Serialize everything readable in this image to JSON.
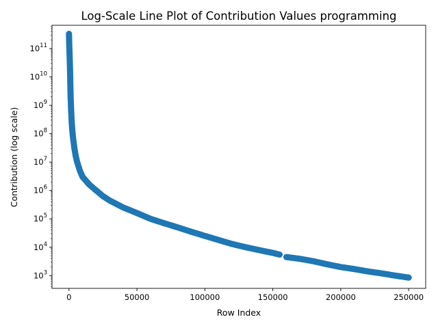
{
  "chart_data": {
    "type": "line",
    "title": "Log-Scale Line Plot of Contribution Values programming",
    "xlabel": "Row Index",
    "ylabel": "Contribution (log scale)",
    "y_scale": "log",
    "grid": false,
    "marker": "circle",
    "series_color": "#1f77b4",
    "xlim": [
      -12500,
      262500
    ],
    "ylim_log10": [
      2.55,
      11.82
    ],
    "x_ticks": [
      0,
      50000,
      100000,
      150000,
      200000,
      250000
    ],
    "x_tick_labels": [
      "0",
      "50000",
      "100000",
      "150000",
      "200000",
      "250000"
    ],
    "y_ticks": [
      {
        "base": "10",
        "exp": "3"
      },
      {
        "base": "10",
        "exp": "4"
      },
      {
        "base": "10",
        "exp": "5"
      },
      {
        "base": "10",
        "exp": "6"
      },
      {
        "base": "10",
        "exp": "7"
      },
      {
        "base": "10",
        "exp": "8"
      },
      {
        "base": "10",
        "exp": "9"
      },
      {
        "base": "10",
        "exp": "10"
      },
      {
        "base": "10",
        "exp": "11"
      }
    ],
    "series": [
      {
        "gap_after_x": 155000,
        "points": [
          [
            0,
            330000000000.0
          ],
          [
            200,
            120000000000.0
          ],
          [
            400,
            70000000000.0
          ],
          [
            600,
            35000000000.0
          ],
          [
            800,
            15000000000.0
          ],
          [
            1000,
            5000000000.0
          ],
          [
            1200,
            2000000000.0
          ],
          [
            1500,
            800000000.0
          ],
          [
            2000,
            250000000.0
          ],
          [
            2500,
            120000000.0
          ],
          [
            3000,
            70000000.0
          ],
          [
            4000,
            30000000.0
          ],
          [
            5000,
            16000000.0
          ],
          [
            6000,
            10000000.0
          ],
          [
            8000,
            5000000.0
          ],
          [
            10000,
            3000000.0
          ],
          [
            15000,
            1600000.0
          ],
          [
            20000,
            1000000.0
          ],
          [
            25000,
            630000.0
          ],
          [
            30000,
            440000.0
          ],
          [
            40000,
            250000.0
          ],
          [
            50000,
            160000.0
          ],
          [
            60000,
            100000.0
          ],
          [
            70000,
            70000.0
          ],
          [
            80000,
            50000.0
          ],
          [
            90000,
            35000.0
          ],
          [
            100000,
            25000.0
          ],
          [
            110000,
            18000.0
          ],
          [
            120000,
            13000.0
          ],
          [
            130000,
            10000.0
          ],
          [
            140000,
            7900.0
          ],
          [
            150000,
            6300.0
          ],
          [
            155000,
            5500.0
          ],
          [
            160000,
            4500.0
          ],
          [
            170000,
            3900.0
          ],
          [
            180000,
            3200.0
          ],
          [
            190000,
            2500.0
          ],
          [
            200000,
            2000.0
          ],
          [
            210000,
            1700.0
          ],
          [
            220000,
            1400.0
          ],
          [
            230000,
            1200.0
          ],
          [
            240000,
            1000.0
          ],
          [
            250000,
            850.0
          ]
        ]
      }
    ]
  }
}
